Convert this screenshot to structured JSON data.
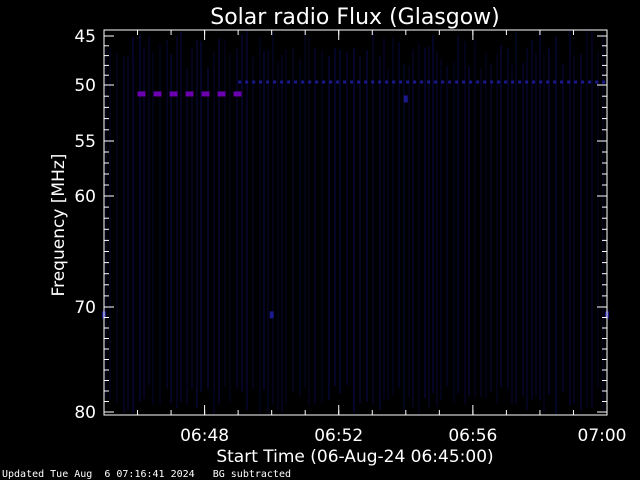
{
  "colors": {
    "background": "#000000",
    "axes": "#ffffff",
    "signal_band": "#1a1a8c",
    "interference": "#6a00b0",
    "noise": "#06062a"
  },
  "chart_data": {
    "type": "heatmap",
    "title": "Solar radio Flux (Glasgow)",
    "xlabel": "Start Time (06-Aug-24 06:45:00)",
    "ylabel": "Frequency [MHz]",
    "x_range": [
      "06:45",
      "07:00"
    ],
    "y_range": [
      45,
      80
    ],
    "x_ticks": [
      "06:48",
      "06:52",
      "06:56",
      "07:00"
    ],
    "y_ticks": [
      45,
      50,
      55,
      60,
      70,
      80
    ],
    "y_scale": "nonlinear (compressed at high frequency)",
    "grid": false,
    "colormap": "dark blue/purple on black",
    "features": [
      {
        "type": "horizontal dashed band",
        "frequency_mhz": 50.8,
        "time_start": "06:46",
        "time_end": "06:49",
        "color": "purple"
      },
      {
        "type": "horizontal dotted band",
        "frequency_mhz": 49.7,
        "time_start": "06:49",
        "time_end": "07:00",
        "color": "blue"
      },
      {
        "type": "blip",
        "frequency_mhz": 51.2,
        "time": "06:54",
        "color": "blue"
      },
      {
        "type": "blip",
        "frequency_mhz": 70.7,
        "time": "06:45",
        "color": "blue"
      },
      {
        "type": "blip",
        "frequency_mhz": 70.7,
        "time": "06:50",
        "color": "blue"
      },
      {
        "type": "blip",
        "frequency_mhz": 70.7,
        "time": "07:00",
        "color": "blue"
      }
    ]
  },
  "footer": {
    "updated": "Updated Tue Aug  6 07:16:41 2024",
    "note": "BG subtracted"
  }
}
